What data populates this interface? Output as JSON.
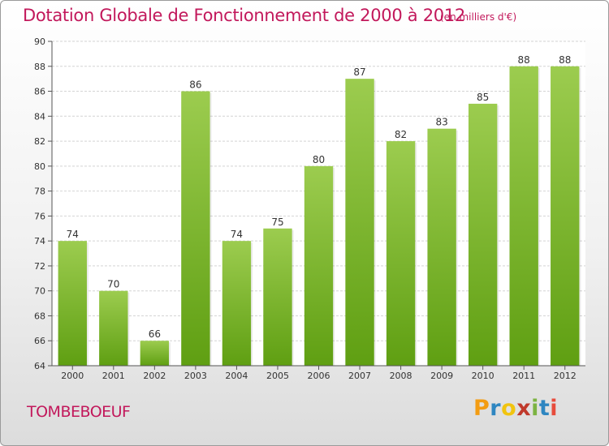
{
  "header": {
    "title": "Dotation Globale de Fonctionnement de 2000 à 2012",
    "unit": "(en milliers d'€)"
  },
  "footer": {
    "commune": "TOMBEBOEUF",
    "brand": {
      "letters": [
        "P",
        "r",
        "o",
        "x",
        "i",
        "t",
        "i"
      ],
      "colors": [
        "#f39c12",
        "#2e86c1",
        "#f1c40f",
        "#c0392b",
        "#7cb342",
        "#2e86c1",
        "#e74c3c"
      ]
    }
  },
  "chart_data": {
    "type": "bar",
    "title": "Dotation Globale de Fonctionnement de 2000 à 2012",
    "subtitle": "(en milliers d'€)",
    "categories": [
      "2000",
      "2001",
      "2002",
      "2003",
      "2004",
      "2005",
      "2006",
      "2007",
      "2008",
      "2009",
      "2010",
      "2011",
      "2012"
    ],
    "values": [
      74,
      70,
      66,
      86,
      74,
      75,
      80,
      87,
      82,
      83,
      85,
      88,
      88
    ],
    "ylim": [
      64,
      90
    ],
    "yticks": [
      64,
      66,
      68,
      70,
      72,
      74,
      76,
      78,
      80,
      82,
      84,
      86,
      88,
      90
    ],
    "grid": "horizontal",
    "bar_color_top": "#9ccc4f",
    "bar_color_bottom": "#5f9f12"
  }
}
